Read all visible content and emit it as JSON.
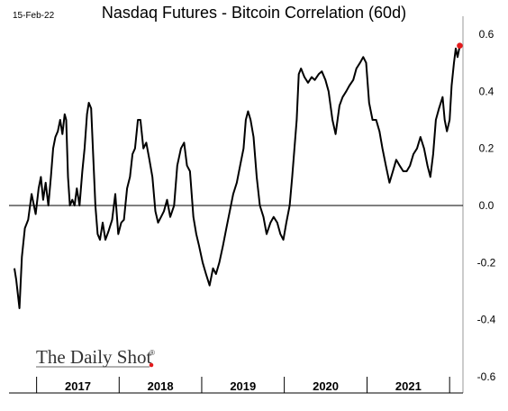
{
  "date_label": "15-Feb-22",
  "brand": {
    "text": "The Daily Shot",
    "registered_mark": "®",
    "accent_color": "#e31a1c"
  },
  "chart_data": {
    "type": "line",
    "title": "Nasdaq Futures - Bitcoin Correlation (60d)",
    "xlabel": "",
    "ylabel": "",
    "ylim": [
      -0.6,
      0.6
    ],
    "yticks": [
      0.6,
      0.4,
      0.2,
      0.0,
      -0.2,
      -0.4,
      -0.6
    ],
    "ytick_labels": [
      "0.6",
      "0.4",
      "0.2",
      "0.0",
      "-0.2",
      "-0.4",
      "-0.6"
    ],
    "x_categories": [
      "2017",
      "2018",
      "2019",
      "2020",
      "2021"
    ],
    "xlim": [
      "2016-09-01",
      "2022-03-01"
    ],
    "year_boundaries": [
      "2017-01-01",
      "2018-01-01",
      "2019-01-01",
      "2020-01-01",
      "2021-01-01",
      "2022-01-01"
    ],
    "grid": false,
    "zero_line": true,
    "line_color": "#000000",
    "last_point_color": "#e31a1c",
    "series": [
      {
        "name": "",
        "points": [
          [
            "2016-09-25",
            -0.22
          ],
          [
            "2016-10-03",
            -0.26
          ],
          [
            "2016-10-10",
            -0.31
          ],
          [
            "2016-10-17",
            -0.36
          ],
          [
            "2016-10-28",
            -0.18
          ],
          [
            "2016-11-10",
            -0.08
          ],
          [
            "2016-11-25",
            -0.05
          ],
          [
            "2016-12-10",
            0.04
          ],
          [
            "2016-12-28",
            -0.03
          ],
          [
            "2017-01-10",
            0.06
          ],
          [
            "2017-01-20",
            0.1
          ],
          [
            "2017-01-30",
            0.02
          ],
          [
            "2017-02-10",
            0.08
          ],
          [
            "2017-02-22",
            0.0
          ],
          [
            "2017-03-05",
            0.1
          ],
          [
            "2017-03-15",
            0.2
          ],
          [
            "2017-03-25",
            0.24
          ],
          [
            "2017-04-05",
            0.26
          ],
          [
            "2017-04-15",
            0.3
          ],
          [
            "2017-04-25",
            0.25
          ],
          [
            "2017-05-05",
            0.32
          ],
          [
            "2017-05-12",
            0.3
          ],
          [
            "2017-05-20",
            0.1
          ],
          [
            "2017-05-28",
            0.0
          ],
          [
            "2017-06-08",
            0.02
          ],
          [
            "2017-06-18",
            0.0
          ],
          [
            "2017-06-28",
            0.06
          ],
          [
            "2017-07-10",
            0.0
          ],
          [
            "2017-07-22",
            0.12
          ],
          [
            "2017-08-01",
            0.2
          ],
          [
            "2017-08-12",
            0.32
          ],
          [
            "2017-08-20",
            0.36
          ],
          [
            "2017-08-30",
            0.34
          ],
          [
            "2017-09-08",
            0.18
          ],
          [
            "2017-09-18",
            0.0
          ],
          [
            "2017-09-28",
            -0.1
          ],
          [
            "2017-10-08",
            -0.12
          ],
          [
            "2017-10-20",
            -0.06
          ],
          [
            "2017-11-01",
            -0.12
          ],
          [
            "2017-11-15",
            -0.09
          ],
          [
            "2017-12-01",
            -0.05
          ],
          [
            "2017-12-15",
            0.04
          ],
          [
            "2017-12-28",
            -0.1
          ],
          [
            "2018-01-10",
            -0.06
          ],
          [
            "2018-01-22",
            -0.05
          ],
          [
            "2018-02-05",
            0.06
          ],
          [
            "2018-02-18",
            0.1
          ],
          [
            "2018-03-01",
            0.18
          ],
          [
            "2018-03-12",
            0.2
          ],
          [
            "2018-03-25",
            0.3
          ],
          [
            "2018-04-05",
            0.3
          ],
          [
            "2018-04-18",
            0.2
          ],
          [
            "2018-05-01",
            0.22
          ],
          [
            "2018-05-15",
            0.16
          ],
          [
            "2018-05-28",
            0.1
          ],
          [
            "2018-06-10",
            -0.02
          ],
          [
            "2018-06-22",
            -0.06
          ],
          [
            "2018-07-05",
            -0.04
          ],
          [
            "2018-07-18",
            -0.02
          ],
          [
            "2018-08-01",
            0.02
          ],
          [
            "2018-08-15",
            -0.04
          ],
          [
            "2018-09-01",
            0.0
          ],
          [
            "2018-09-15",
            0.14
          ],
          [
            "2018-10-01",
            0.2
          ],
          [
            "2018-10-15",
            0.22
          ],
          [
            "2018-10-28",
            0.14
          ],
          [
            "2018-11-10",
            0.12
          ],
          [
            "2018-11-25",
            -0.04
          ],
          [
            "2018-12-08",
            -0.1
          ],
          [
            "2018-12-20",
            -0.14
          ],
          [
            "2019-01-05",
            -0.2
          ],
          [
            "2019-01-20",
            -0.24
          ],
          [
            "2019-02-05",
            -0.28
          ],
          [
            "2019-02-20",
            -0.22
          ],
          [
            "2019-03-05",
            -0.24
          ],
          [
            "2019-03-20",
            -0.2
          ],
          [
            "2019-04-05",
            -0.14
          ],
          [
            "2019-04-20",
            -0.08
          ],
          [
            "2019-05-05",
            -0.02
          ],
          [
            "2019-05-20",
            0.04
          ],
          [
            "2019-06-05",
            0.08
          ],
          [
            "2019-06-20",
            0.14
          ],
          [
            "2019-07-05",
            0.2
          ],
          [
            "2019-07-15",
            0.3
          ],
          [
            "2019-07-25",
            0.33
          ],
          [
            "2019-08-05",
            0.3
          ],
          [
            "2019-08-18",
            0.24
          ],
          [
            "2019-09-01",
            0.1
          ],
          [
            "2019-09-15",
            0.0
          ],
          [
            "2019-10-01",
            -0.04
          ],
          [
            "2019-10-15",
            -0.1
          ],
          [
            "2019-11-01",
            -0.06
          ],
          [
            "2019-11-15",
            -0.04
          ],
          [
            "2019-12-01",
            -0.06
          ],
          [
            "2019-12-15",
            -0.1
          ],
          [
            "2019-12-28",
            -0.12
          ],
          [
            "2020-01-10",
            -0.06
          ],
          [
            "2020-01-25",
            0.0
          ],
          [
            "2020-02-05",
            0.1
          ],
          [
            "2020-02-15",
            0.2
          ],
          [
            "2020-02-25",
            0.3
          ],
          [
            "2020-03-05",
            0.46
          ],
          [
            "2020-03-15",
            0.48
          ],
          [
            "2020-03-30",
            0.45
          ],
          [
            "2020-04-15",
            0.43
          ],
          [
            "2020-05-01",
            0.45
          ],
          [
            "2020-05-15",
            0.44
          ],
          [
            "2020-06-01",
            0.46
          ],
          [
            "2020-06-15",
            0.47
          ],
          [
            "2020-07-01",
            0.44
          ],
          [
            "2020-07-15",
            0.4
          ],
          [
            "2020-08-01",
            0.3
          ],
          [
            "2020-08-15",
            0.25
          ],
          [
            "2020-09-01",
            0.35
          ],
          [
            "2020-09-15",
            0.38
          ],
          [
            "2020-10-01",
            0.4
          ],
          [
            "2020-10-15",
            0.42
          ],
          [
            "2020-11-01",
            0.44
          ],
          [
            "2020-11-15",
            0.48
          ],
          [
            "2020-12-01",
            0.5
          ],
          [
            "2020-12-15",
            0.52
          ],
          [
            "2020-12-28",
            0.5
          ],
          [
            "2021-01-10",
            0.36
          ],
          [
            "2021-01-25",
            0.3
          ],
          [
            "2021-02-10",
            0.3
          ],
          [
            "2021-02-25",
            0.26
          ],
          [
            "2021-03-10",
            0.2
          ],
          [
            "2021-03-25",
            0.14
          ],
          [
            "2021-04-10",
            0.08
          ],
          [
            "2021-04-25",
            0.12
          ],
          [
            "2021-05-10",
            0.16
          ],
          [
            "2021-05-25",
            0.14
          ],
          [
            "2021-06-10",
            0.12
          ],
          [
            "2021-06-25",
            0.12
          ],
          [
            "2021-07-10",
            0.14
          ],
          [
            "2021-07-25",
            0.18
          ],
          [
            "2021-08-10",
            0.2
          ],
          [
            "2021-08-25",
            0.24
          ],
          [
            "2021-09-10",
            0.2
          ],
          [
            "2021-09-25",
            0.14
          ],
          [
            "2021-10-08",
            0.1
          ],
          [
            "2021-10-20",
            0.18
          ],
          [
            "2021-11-01",
            0.3
          ],
          [
            "2021-11-15",
            0.34
          ],
          [
            "2021-12-01",
            0.38
          ],
          [
            "2021-12-10",
            0.3
          ],
          [
            "2021-12-20",
            0.26
          ],
          [
            "2022-01-01",
            0.3
          ],
          [
            "2022-01-10",
            0.42
          ],
          [
            "2022-01-20",
            0.5
          ],
          [
            "2022-01-28",
            0.55
          ],
          [
            "2022-02-05",
            0.52
          ],
          [
            "2022-02-15",
            0.56
          ]
        ]
      }
    ]
  }
}
